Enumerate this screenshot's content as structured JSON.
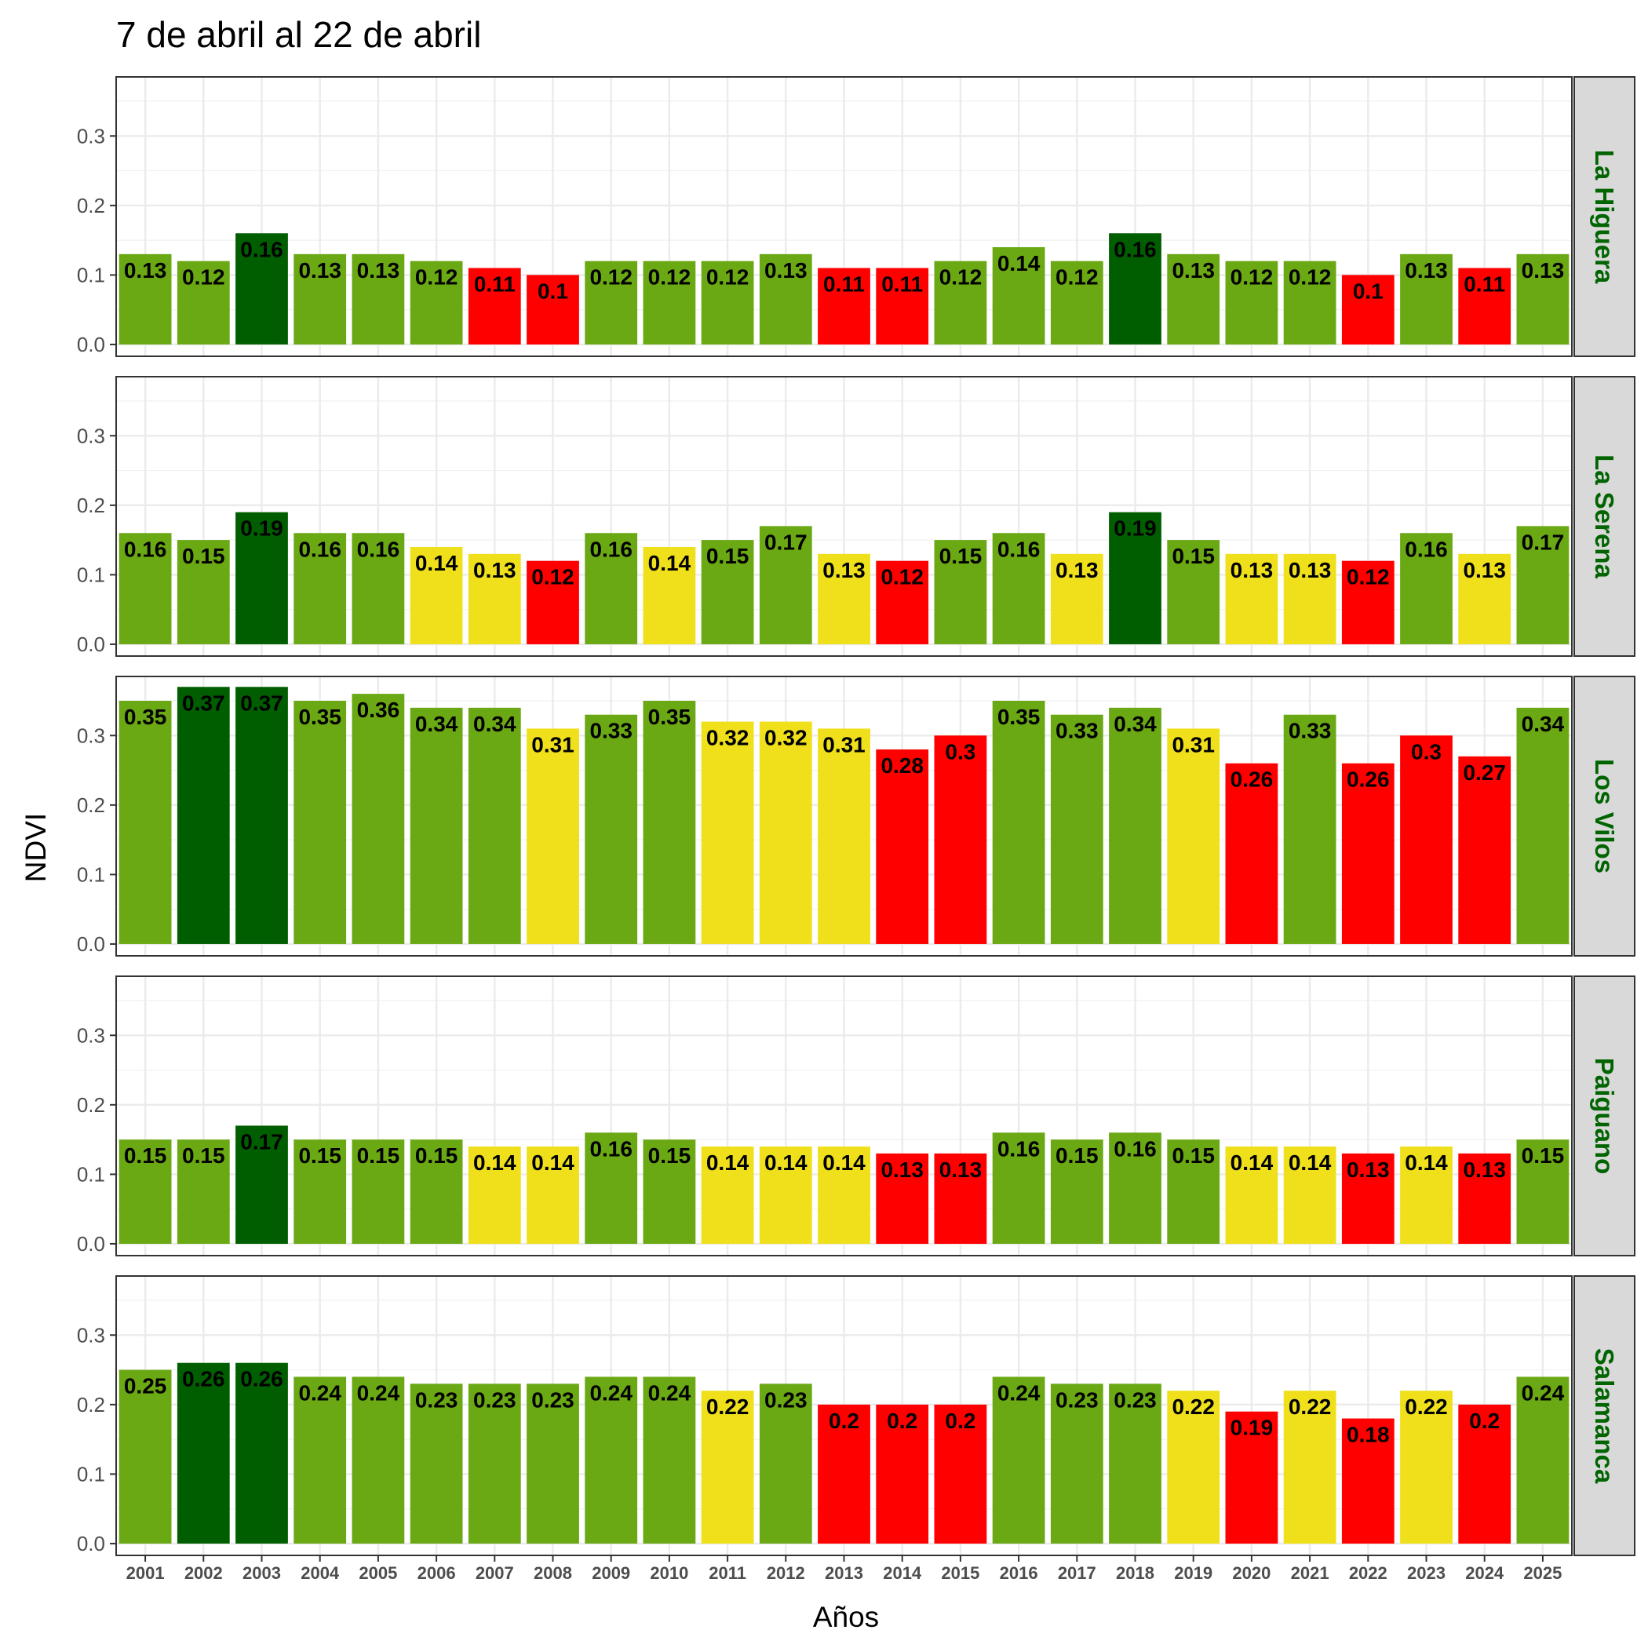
{
  "chart_data": {
    "type": "bar",
    "title": "7 de abril al 22 de abril",
    "xlabel": "Años",
    "ylabel": "NDVI",
    "ylim": [
      -0.017,
      0.385
    ],
    "yticks": [
      "0.0",
      "0.1",
      "0.2",
      "0.3"
    ],
    "grid": true,
    "strip_text_color": "#006400",
    "categories": [
      "2001",
      "2002",
      "2003",
      "2004",
      "2005",
      "2006",
      "2007",
      "2008",
      "2009",
      "2010",
      "2011",
      "2012",
      "2013",
      "2014",
      "2015",
      "2016",
      "2017",
      "2018",
      "2019",
      "2020",
      "2021",
      "2022",
      "2023",
      "2024",
      "2025"
    ],
    "colors": {
      "high": "#005e00",
      "normal": "#6aa814",
      "low": "#efe01b",
      "very_low": "#ff0000"
    },
    "series": [
      {
        "name": "La Higuera",
        "values": [
          0.13,
          0.12,
          0.16,
          0.13,
          0.13,
          0.12,
          0.11,
          0.1,
          0.12,
          0.12,
          0.12,
          0.13,
          0.11,
          0.11,
          0.12,
          0.14,
          0.12,
          0.16,
          0.13,
          0.12,
          0.12,
          0.1,
          0.13,
          0.11,
          0.13
        ],
        "labels": [
          "0.13",
          "0.12",
          "0.16",
          "0.13",
          "0.13",
          "0.12",
          "0.11",
          "0.1",
          "0.12",
          "0.12",
          "0.12",
          "0.13",
          "0.11",
          "0.11",
          "0.12",
          "0.14",
          "0.12",
          "0.16",
          "0.13",
          "0.12",
          "0.12",
          "0.1",
          "0.13",
          "0.11",
          "0.13"
        ],
        "classes": [
          "normal",
          "normal",
          "high",
          "normal",
          "normal",
          "normal",
          "very_low",
          "very_low",
          "normal",
          "normal",
          "normal",
          "normal",
          "very_low",
          "very_low",
          "normal",
          "normal",
          "normal",
          "high",
          "normal",
          "normal",
          "normal",
          "very_low",
          "normal",
          "very_low",
          "normal"
        ]
      },
      {
        "name": "La Serena",
        "values": [
          0.16,
          0.15,
          0.19,
          0.16,
          0.16,
          0.14,
          0.13,
          0.12,
          0.16,
          0.14,
          0.15,
          0.17,
          0.13,
          0.12,
          0.15,
          0.16,
          0.13,
          0.19,
          0.15,
          0.13,
          0.13,
          0.12,
          0.16,
          0.13,
          0.17
        ],
        "labels": [
          "0.16",
          "0.15",
          "0.19",
          "0.16",
          "0.16",
          "0.14",
          "0.13",
          "0.12",
          "0.16",
          "0.14",
          "0.15",
          "0.17",
          "0.13",
          "0.12",
          "0.15",
          "0.16",
          "0.13",
          "0.19",
          "0.15",
          "0.13",
          "0.13",
          "0.12",
          "0.16",
          "0.13",
          "0.17"
        ],
        "classes": [
          "normal",
          "normal",
          "high",
          "normal",
          "normal",
          "low",
          "low",
          "very_low",
          "normal",
          "low",
          "normal",
          "normal",
          "low",
          "very_low",
          "normal",
          "normal",
          "low",
          "high",
          "normal",
          "low",
          "low",
          "very_low",
          "normal",
          "low",
          "normal"
        ]
      },
      {
        "name": "Los Vilos",
        "values": [
          0.35,
          0.37,
          0.37,
          0.35,
          0.36,
          0.34,
          0.34,
          0.31,
          0.33,
          0.35,
          0.32,
          0.32,
          0.31,
          0.28,
          0.3,
          0.35,
          0.33,
          0.34,
          0.31,
          0.26,
          0.33,
          0.26,
          0.3,
          0.27,
          0.34
        ],
        "labels": [
          "0.35",
          "0.37",
          "0.37",
          "0.35",
          "0.36",
          "0.34",
          "0.34",
          "0.31",
          "0.33",
          "0.35",
          "0.32",
          "0.32",
          "0.31",
          "0.28",
          "0.3",
          "0.35",
          "0.33",
          "0.34",
          "0.31",
          "0.26",
          "0.33",
          "0.26",
          "0.3",
          "0.27",
          "0.34"
        ],
        "classes": [
          "normal",
          "high",
          "high",
          "normal",
          "normal",
          "normal",
          "normal",
          "low",
          "normal",
          "normal",
          "low",
          "low",
          "low",
          "very_low",
          "very_low",
          "normal",
          "normal",
          "normal",
          "low",
          "very_low",
          "normal",
          "very_low",
          "very_low",
          "very_low",
          "normal"
        ]
      },
      {
        "name": "Paiguano",
        "values": [
          0.15,
          0.15,
          0.17,
          0.15,
          0.15,
          0.15,
          0.14,
          0.14,
          0.16,
          0.15,
          0.14,
          0.14,
          0.14,
          0.13,
          0.13,
          0.16,
          0.15,
          0.16,
          0.15,
          0.14,
          0.14,
          0.13,
          0.14,
          0.13,
          0.15
        ],
        "labels": [
          "0.15",
          "0.15",
          "0.17",
          "0.15",
          "0.15",
          "0.15",
          "0.14",
          "0.14",
          "0.16",
          "0.15",
          "0.14",
          "0.14",
          "0.14",
          "0.13",
          "0.13",
          "0.16",
          "0.15",
          "0.16",
          "0.15",
          "0.14",
          "0.14",
          "0.13",
          "0.14",
          "0.13",
          "0.15"
        ],
        "classes": [
          "normal",
          "normal",
          "high",
          "normal",
          "normal",
          "normal",
          "low",
          "low",
          "normal",
          "normal",
          "low",
          "low",
          "low",
          "very_low",
          "very_low",
          "normal",
          "normal",
          "normal",
          "normal",
          "low",
          "low",
          "very_low",
          "low",
          "very_low",
          "normal"
        ]
      },
      {
        "name": "Salamanca",
        "values": [
          0.25,
          0.26,
          0.26,
          0.24,
          0.24,
          0.23,
          0.23,
          0.23,
          0.24,
          0.24,
          0.22,
          0.23,
          0.2,
          0.2,
          0.2,
          0.24,
          0.23,
          0.23,
          0.22,
          0.19,
          0.22,
          0.18,
          0.22,
          0.2,
          0.24
        ],
        "labels": [
          "0.25",
          "0.26",
          "0.26",
          "0.24",
          "0.24",
          "0.23",
          "0.23",
          "0.23",
          "0.24",
          "0.24",
          "0.22",
          "0.23",
          "0.2",
          "0.2",
          "0.2",
          "0.24",
          "0.23",
          "0.23",
          "0.22",
          "0.19",
          "0.22",
          "0.18",
          "0.22",
          "0.2",
          "0.24"
        ],
        "classes": [
          "normal",
          "high",
          "high",
          "normal",
          "normal",
          "normal",
          "normal",
          "normal",
          "normal",
          "normal",
          "low",
          "normal",
          "very_low",
          "very_low",
          "very_low",
          "normal",
          "normal",
          "normal",
          "low",
          "very_low",
          "low",
          "very_low",
          "low",
          "very_low",
          "normal"
        ]
      }
    ]
  }
}
